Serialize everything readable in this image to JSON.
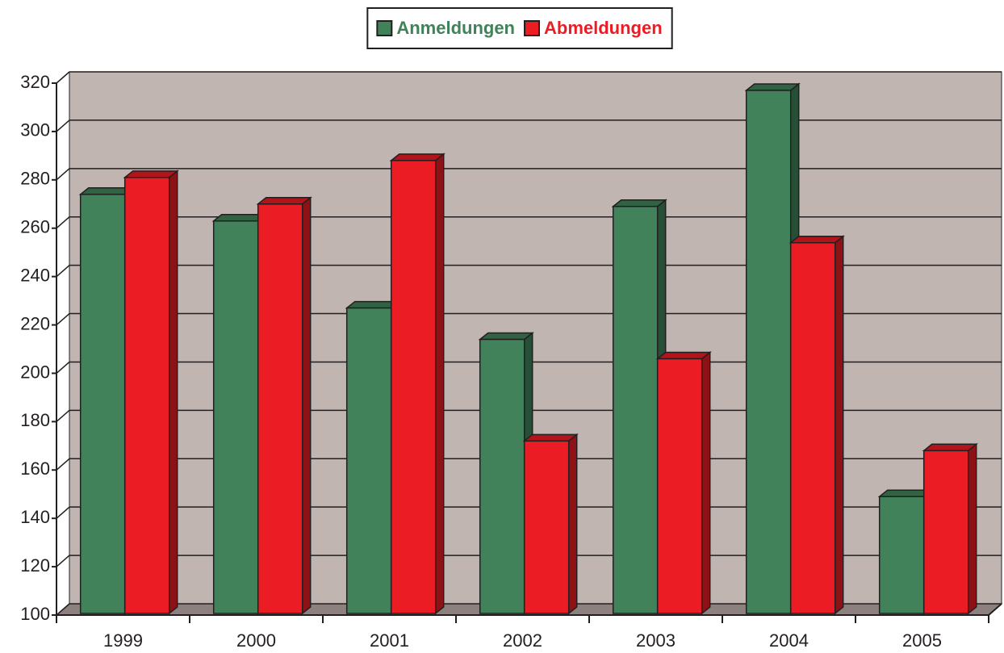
{
  "chart_data": {
    "type": "bar3d",
    "categories": [
      "1999",
      "2000",
      "2001",
      "2002",
      "2003",
      "2004",
      "2005"
    ],
    "series": [
      {
        "name": "Anmeldungen",
        "color": "#41825a",
        "values": [
          274,
          263,
          227,
          214,
          269,
          317,
          149
        ]
      },
      {
        "name": "Abmeldungen",
        "color": "#ec1c24",
        "values": [
          281,
          270,
          288,
          172,
          206,
          254,
          168
        ]
      }
    ],
    "ylim": [
      100,
      320
    ],
    "yticks": [
      100,
      120,
      140,
      160,
      180,
      200,
      220,
      240,
      260,
      280,
      300,
      320
    ],
    "grid": true,
    "legend": "top"
  }
}
